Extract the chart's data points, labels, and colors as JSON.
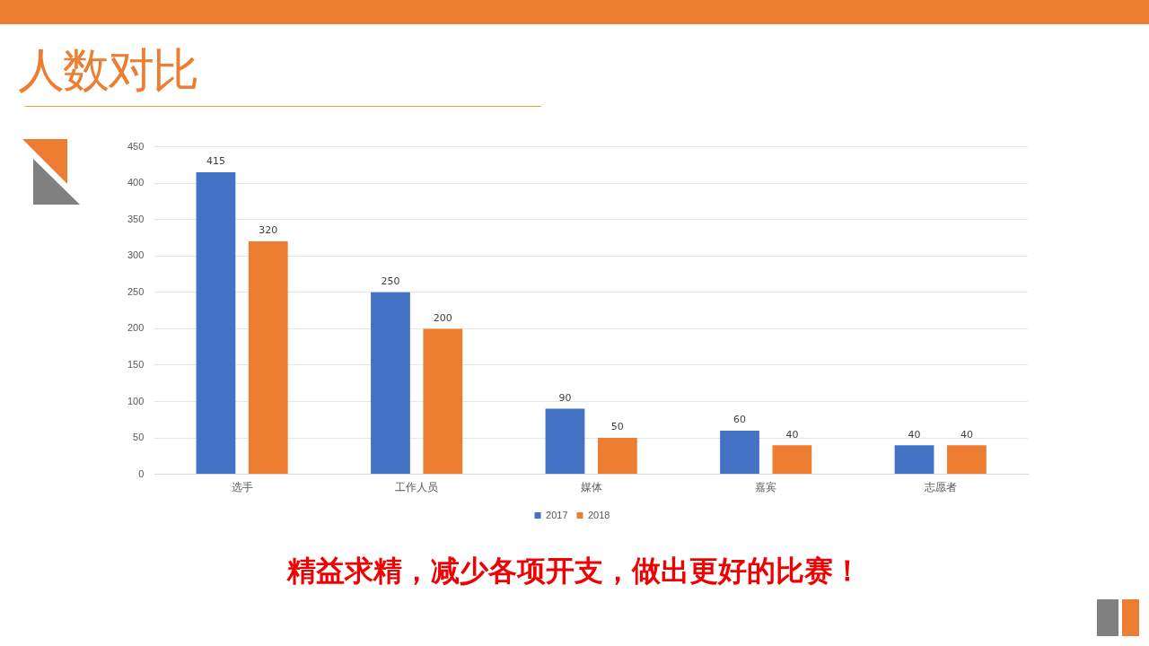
{
  "chart_data": {
    "type": "bar",
    "title": "人数对比",
    "categories": [
      "选手",
      "工作人员",
      "媒体",
      "嘉宾",
      "志愿者"
    ],
    "series": [
      {
        "name": "2017",
        "color": "#4472c4",
        "values": [
          415,
          250,
          90,
          60,
          40
        ]
      },
      {
        "name": "2018",
        "color": "#ed7d31",
        "values": [
          320,
          200,
          50,
          40,
          40
        ]
      }
    ],
    "ylim": [
      0,
      450
    ],
    "yticks": [
      0,
      50,
      100,
      150,
      200,
      250,
      300,
      350,
      400,
      450
    ],
    "grid": "y",
    "legend": "bottom",
    "data_labels": true,
    "annotations": [
      "精益求精，减少各项开支，做出更好的比赛！"
    ]
  }
}
